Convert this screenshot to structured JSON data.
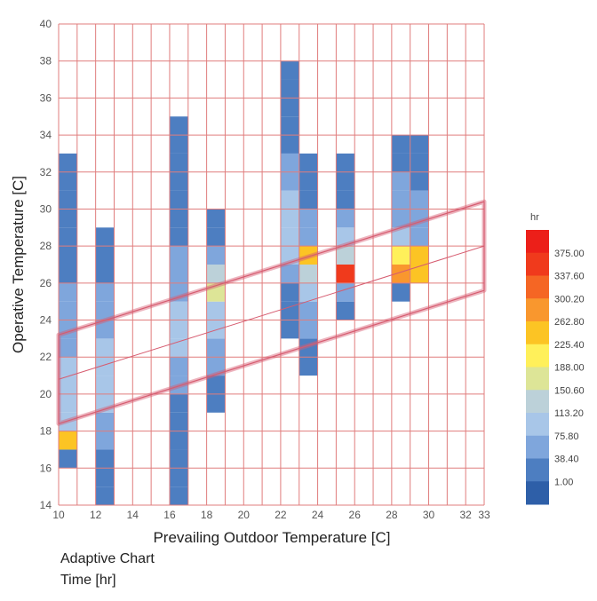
{
  "chart_data": {
    "type": "heatmap",
    "title": "Adaptive Chart",
    "subtitle": "Time [hr]",
    "xlabel": "Prevailing Outdoor Temperature [C]",
    "ylabel": "Operative Temperature [C]",
    "xlim": [
      10,
      33
    ],
    "ylim": [
      14,
      40
    ],
    "x_ticks": [
      "10",
      "12",
      "14",
      "16",
      "18",
      "20",
      "22",
      "24",
      "26",
      "28",
      "30",
      "32",
      "33"
    ],
    "y_ticks": [
      "14",
      "16",
      "18",
      "20",
      "22",
      "24",
      "26",
      "28",
      "30",
      "32",
      "34",
      "36",
      "38",
      "40"
    ],
    "grid": true,
    "cell_size_x": 1,
    "cell_size_y": 1,
    "columns": [
      {
        "x": 10,
        "cells": [
          [
            16,
            15
          ],
          [
            17,
            230
          ],
          [
            18,
            85
          ],
          [
            19,
            90
          ],
          [
            20,
            88
          ],
          [
            21,
            82
          ],
          [
            22,
            75
          ],
          [
            23,
            62
          ],
          [
            24,
            50
          ],
          [
            25,
            42
          ],
          [
            26,
            34
          ],
          [
            27,
            28
          ],
          [
            28,
            22
          ],
          [
            29,
            18
          ],
          [
            30,
            14
          ],
          [
            31,
            10
          ],
          [
            32,
            6
          ]
        ]
      },
      {
        "x": 12,
        "cells": [
          [
            14,
            8
          ],
          [
            15,
            18
          ],
          [
            16,
            30
          ],
          [
            17,
            45
          ],
          [
            18,
            60
          ],
          [
            19,
            78
          ],
          [
            20,
            85
          ],
          [
            21,
            82
          ],
          [
            22,
            76
          ],
          [
            23,
            65
          ],
          [
            24,
            52
          ],
          [
            25,
            42
          ],
          [
            26,
            36
          ],
          [
            27,
            28
          ],
          [
            28,
            14
          ]
        ]
      },
      {
        "x": 16,
        "cells": [
          [
            14,
            4
          ],
          [
            15,
            6
          ],
          [
            16,
            9
          ],
          [
            17,
            14
          ],
          [
            18,
            22
          ],
          [
            19,
            32
          ],
          [
            20,
            48
          ],
          [
            21,
            70
          ],
          [
            22,
            80
          ],
          [
            23,
            84
          ],
          [
            24,
            80
          ],
          [
            25,
            70
          ],
          [
            26,
            55
          ],
          [
            27,
            40
          ],
          [
            28,
            30
          ],
          [
            29,
            22
          ],
          [
            30,
            16
          ],
          [
            31,
            12
          ],
          [
            32,
            8
          ],
          [
            33,
            6
          ],
          [
            34,
            4
          ]
        ]
      },
      {
        "x": 18,
        "cells": [
          [
            19,
            12
          ],
          [
            20,
            30
          ],
          [
            21,
            50
          ],
          [
            22,
            70
          ],
          [
            23,
            85
          ],
          [
            24,
            105
          ],
          [
            25,
            175
          ],
          [
            26,
            130
          ],
          [
            27,
            68
          ],
          [
            28,
            35
          ],
          [
            29,
            18
          ]
        ]
      },
      {
        "x": 22,
        "cells": [
          [
            23,
            14
          ],
          [
            24,
            22
          ],
          [
            25,
            32
          ],
          [
            26,
            52
          ],
          [
            27,
            78
          ],
          [
            28,
            95
          ],
          [
            29,
            108
          ],
          [
            30,
            82
          ],
          [
            31,
            58
          ],
          [
            32,
            42
          ],
          [
            33,
            32
          ],
          [
            34,
            24
          ],
          [
            35,
            18
          ],
          [
            36,
            12
          ],
          [
            37,
            8
          ]
        ]
      },
      {
        "x": 23,
        "cells": [
          [
            21,
            14
          ],
          [
            22,
            30
          ],
          [
            23,
            48
          ],
          [
            24,
            64
          ],
          [
            25,
            85
          ],
          [
            26,
            125
          ],
          [
            27,
            250
          ],
          [
            28,
            75
          ],
          [
            29,
            48
          ],
          [
            30,
            34
          ],
          [
            31,
            24
          ],
          [
            32,
            16
          ]
        ]
      },
      {
        "x": 25,
        "cells": [
          [
            24,
            12
          ],
          [
            25,
            40
          ],
          [
            26,
            375
          ],
          [
            27,
            118
          ],
          [
            28,
            85
          ],
          [
            29,
            42
          ],
          [
            30,
            24
          ],
          [
            31,
            16
          ],
          [
            32,
            10
          ]
        ]
      },
      {
        "x": 28,
        "cells": [
          [
            25,
            22
          ],
          [
            26,
            270
          ],
          [
            27,
            215
          ],
          [
            28,
            78
          ],
          [
            29,
            65
          ],
          [
            30,
            52
          ],
          [
            31,
            40
          ],
          [
            32,
            30
          ],
          [
            33,
            22
          ]
        ]
      },
      {
        "x": 29,
        "cells": [
          [
            26,
            235
          ],
          [
            27,
            262
          ],
          [
            28,
            72
          ],
          [
            29,
            55
          ],
          [
            30,
            44
          ],
          [
            31,
            34
          ],
          [
            32,
            24
          ],
          [
            33,
            16
          ]
        ]
      }
    ],
    "comfort_zone": {
      "outer_upper": [
        [
          10,
          23.2
        ],
        [
          33,
          30.4
        ]
      ],
      "outer_lower": [
        [
          10,
          18.4
        ],
        [
          33,
          25.6
        ]
      ],
      "center_line": [
        [
          10,
          20.8
        ],
        [
          33,
          28.0
        ]
      ]
    },
    "legend": {
      "title": "hr",
      "placement": "right",
      "labels": [
        "375.00",
        "337.60",
        "300.20",
        "262.80",
        "225.40",
        "188.00",
        "150.60",
        "113.20",
        "75.80",
        "38.40",
        "1.00"
      ],
      "stops": [
        1,
        38.4,
        75.8,
        113.2,
        150.6,
        188,
        225.4,
        262.8,
        300.2,
        337.6,
        375
      ],
      "colors": [
        "#2e5fa8",
        "#4d7ec1",
        "#7fa6dc",
        "#a8c6e8",
        "#bcd1d9",
        "#dde597",
        "#fff05a",
        "#fcc424",
        "#f9972e",
        "#f56624",
        "#f03a1c",
        "#ec1f19"
      ]
    },
    "colors": {
      "grid": "#e07d7d",
      "comfort_band": "#d65c70"
    }
  }
}
